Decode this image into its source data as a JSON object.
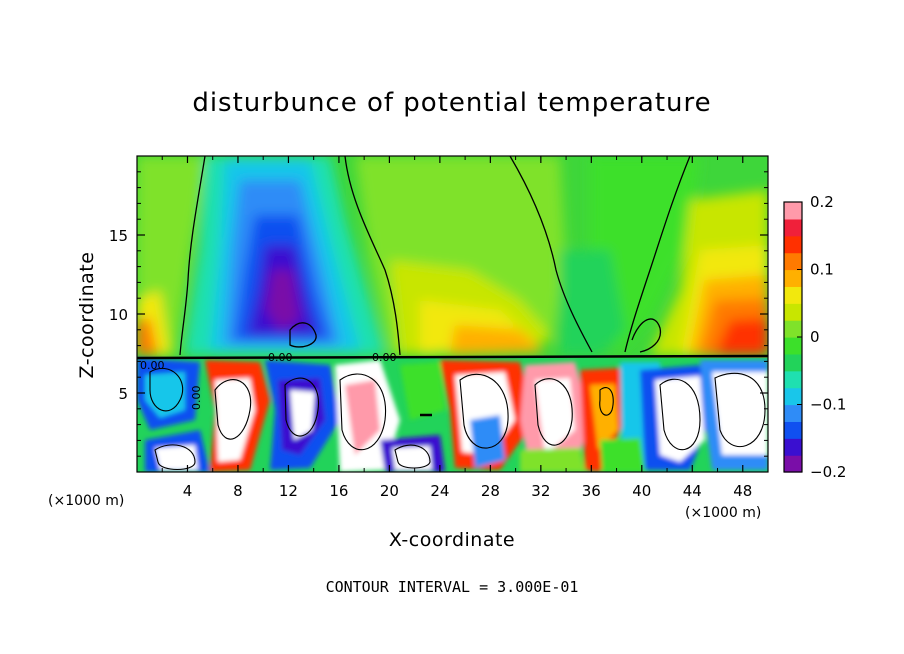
{
  "chart_data": {
    "type": "heatmap",
    "title": "disturbunce of potential temperature",
    "xlabel": "X-coordinate",
    "ylabel": "Z-coordinate",
    "x_unit": "(×1000 m)",
    "z_unit": "(×1000 m)",
    "xlim": [
      0,
      50
    ],
    "ylim": [
      0,
      20
    ],
    "x_ticks": [
      4,
      8,
      12,
      16,
      20,
      24,
      28,
      32,
      36,
      40,
      44,
      48
    ],
    "y_ticks": [
      5,
      10,
      15
    ],
    "colorbar": {
      "range": [
        -0.2,
        0.2
      ],
      "tick_labels": [
        "0.2",
        "0.1",
        "0",
        "−0.1",
        "−0.2"
      ],
      "tick_values": [
        0.2,
        0.1,
        0,
        -0.1,
        -0.2
      ],
      "colors": [
        "#7a0ea8",
        "#3a0fd0",
        "#1050f0",
        "#2f8cf7",
        "#19c6ea",
        "#1fe0b0",
        "#22d35a",
        "#3ce02a",
        "#7fe22a",
        "#c8e600",
        "#f2e80d",
        "#ffb000",
        "#ff7a00",
        "#ff3000",
        "#f0203a",
        "#ff9aaa"
      ]
    },
    "contour_labels": [
      "0.00",
      "0.00",
      "0.00",
      "0.00"
    ],
    "footnote": "CONTOUR INTERVAL = 3.000E-01"
  }
}
